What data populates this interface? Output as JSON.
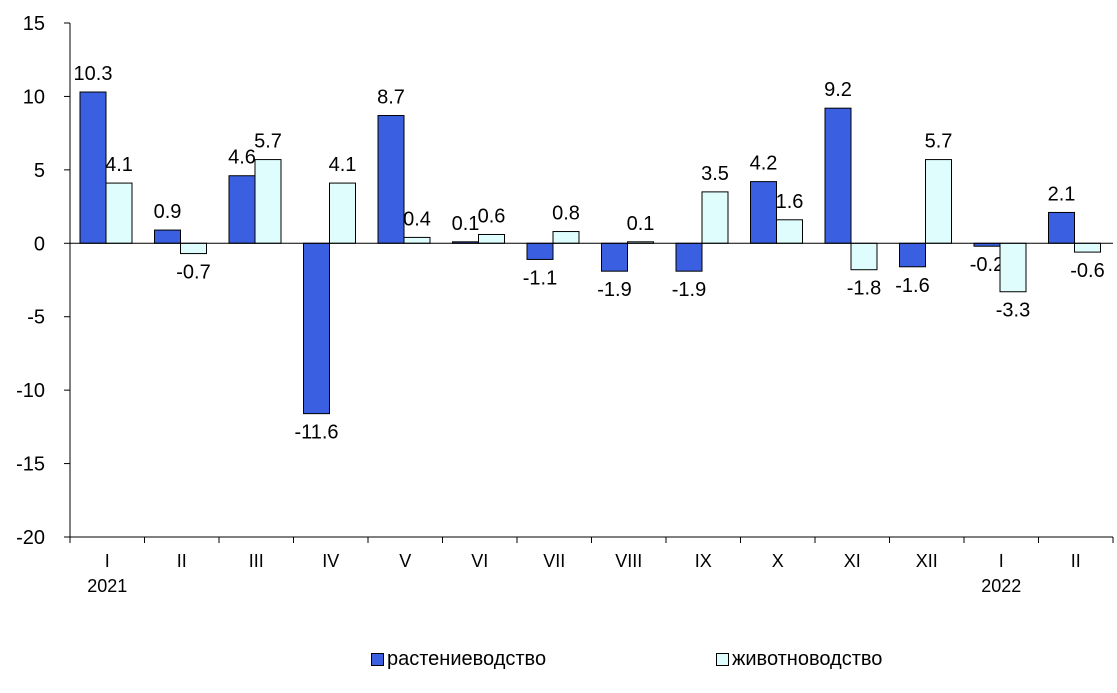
{
  "chart_data": {
    "type": "bar",
    "categories": [
      "I",
      "II",
      "III",
      "IV",
      "V",
      "VI",
      "VII",
      "VIII",
      "IX",
      "X",
      "XI",
      "XII",
      "I",
      "II"
    ],
    "year_labels": [
      {
        "index": 0,
        "label": "2021"
      },
      {
        "index": 12,
        "label": "2022"
      }
    ],
    "series": [
      {
        "name": "растениеводство",
        "color": "#3a5fe0",
        "values": [
          10.3,
          0.9,
          4.6,
          -11.6,
          8.7,
          0.1,
          -1.1,
          -1.9,
          -1.9,
          4.2,
          9.2,
          -1.6,
          -0.2,
          2.1
        ]
      },
      {
        "name": "животноводство",
        "color": "#dffdfd",
        "values": [
          4.1,
          -0.7,
          5.7,
          4.1,
          0.4,
          0.6,
          0.8,
          0.1,
          3.5,
          1.6,
          -1.8,
          5.7,
          -3.3,
          -0.6
        ]
      }
    ],
    "ylim": [
      -20,
      15
    ],
    "yticks": [
      15,
      10,
      5,
      0,
      -5,
      -10,
      -15,
      -20
    ],
    "grid": false,
    "legend_position": "bottom"
  }
}
